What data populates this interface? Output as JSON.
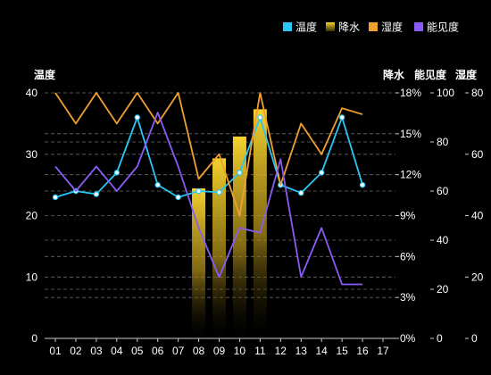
{
  "chart_data": {
    "type": "bar-line-combo",
    "categories": [
      "01",
      "02",
      "03",
      "04",
      "05",
      "06",
      "07",
      "08",
      "09",
      "10",
      "11",
      "12",
      "13",
      "14",
      "15",
      "16",
      "17"
    ],
    "legend_position": "top-right",
    "grid": true,
    "series": [
      {
        "name": "温度",
        "type": "line",
        "axis": "温度",
        "color": "#29c7f5",
        "marker": true,
        "values": [
          23,
          24,
          23.5,
          27,
          36,
          25,
          23,
          24,
          23.8,
          27,
          36,
          25,
          23.7,
          27,
          36,
          25,
          null
        ]
      },
      {
        "name": "降水",
        "type": "bar",
        "axis": "降水",
        "color": "#f5d22f",
        "values": [
          null,
          null,
          null,
          null,
          null,
          null,
          null,
          11,
          13.2,
          14.8,
          16.8,
          null,
          null,
          null,
          null,
          null,
          null
        ]
      },
      {
        "name": "湿度",
        "type": "line",
        "axis": "湿度",
        "color": "#f0a030",
        "marker": false,
        "values": [
          80,
          70,
          80,
          70,
          80,
          70,
          80,
          52,
          60,
          40,
          80,
          50,
          70,
          60,
          75,
          73,
          null
        ]
      },
      {
        "name": "能见度",
        "type": "line",
        "axis": "能见度",
        "color": "#8a5cf5",
        "marker": false,
        "values": [
          70,
          60,
          70,
          60,
          70,
          92,
          70,
          45,
          25,
          45,
          43,
          73,
          25,
          45,
          22,
          22,
          null
        ]
      }
    ],
    "axes": [
      {
        "id": "温度",
        "title": "温度",
        "side": "left",
        "ylim": [
          0,
          40
        ],
        "ticks": [
          "0",
          "10",
          "20",
          "30",
          "40"
        ]
      },
      {
        "id": "降水",
        "title": "降水",
        "side": "right",
        "ylim": [
          0,
          18
        ],
        "ticks": [
          "0%",
          "3%",
          "6%",
          "9%",
          "12%",
          "15%",
          "18%"
        ]
      },
      {
        "id": "能见度",
        "title": "能见度",
        "side": "right",
        "ylim": [
          0,
          100
        ],
        "ticks": [
          "0",
          "20",
          "40",
          "60",
          "80",
          "100"
        ]
      },
      {
        "id": "湿度",
        "title": "湿度",
        "side": "right",
        "ylim": [
          0,
          80
        ],
        "ticks": [
          "0",
          "20",
          "40",
          "60",
          "80"
        ]
      }
    ],
    "colors": {
      "background": "#000000",
      "grid": "#6a6a6a",
      "text": "#ffffff",
      "axis_line": "#cccccc"
    }
  }
}
